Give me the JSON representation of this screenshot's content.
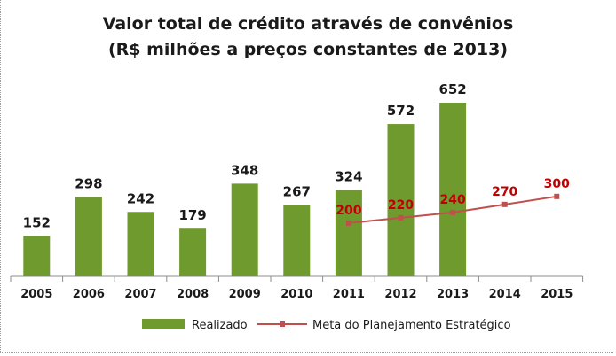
{
  "chart_data": {
    "type": "bar",
    "title": "Valor total de crédito através de convênios",
    "subtitle": "(R$ milhões a preços constantes de 2013)",
    "categories": [
      "2005",
      "2006",
      "2007",
      "2008",
      "2009",
      "2010",
      "2011",
      "2012",
      "2013",
      "2014",
      "2015"
    ],
    "ylim": [
      0,
      652
    ],
    "grid": false,
    "legend_position": "bottom",
    "series": [
      {
        "name": "Realizado",
        "type": "bar",
        "color": "#6f9a2e",
        "values": [
          152,
          298,
          242,
          179,
          348,
          267,
          324,
          572,
          652,
          null,
          null
        ]
      },
      {
        "name": "Meta do Planejamento Estratégico",
        "type": "line",
        "color": "#c0504d",
        "label_color": "#c00000",
        "values": [
          null,
          null,
          null,
          null,
          null,
          null,
          200,
          220,
          240,
          270,
          300
        ]
      }
    ]
  }
}
